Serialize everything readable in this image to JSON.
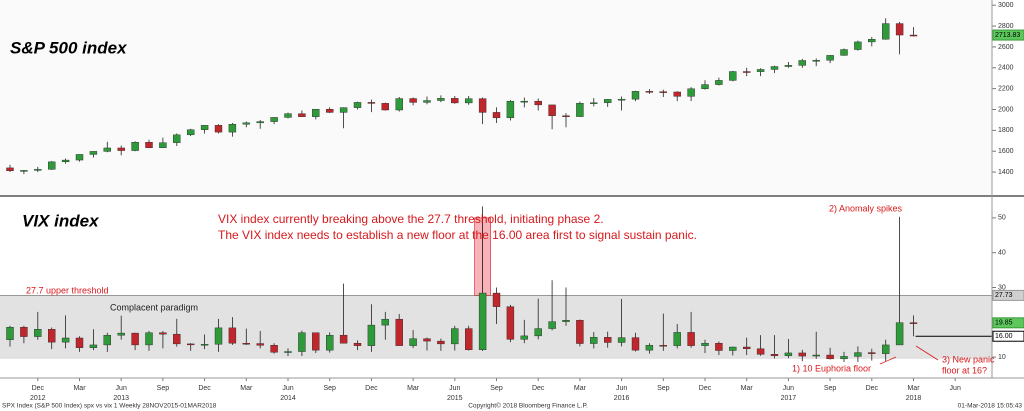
{
  "chart_data": [
    {
      "type": "candlestick",
      "title": "S&P 500 index",
      "color_up": "#2e9a3a",
      "color_down": "#c0272d",
      "x": [
        "2012-10",
        "2012-11",
        "2012-12",
        "2013-01",
        "2013-02",
        "2013-03",
        "2013-04",
        "2013-05",
        "2013-06",
        "2013-07",
        "2013-08",
        "2013-09",
        "2013-10",
        "2013-11",
        "2013-12",
        "2014-01",
        "2014-02",
        "2014-03",
        "2014-04",
        "2014-05",
        "2014-06",
        "2014-07",
        "2014-08",
        "2014-09",
        "2014-10",
        "2014-11",
        "2014-12",
        "2015-01",
        "2015-02",
        "2015-03",
        "2015-04",
        "2015-05",
        "2015-06",
        "2015-07",
        "2015-08",
        "2015-09",
        "2015-10",
        "2015-11",
        "2015-12",
        "2016-01",
        "2016-02",
        "2016-03",
        "2016-04",
        "2016-05",
        "2016-06",
        "2016-07",
        "2016-08",
        "2016-09",
        "2016-10",
        "2016-11",
        "2016-12",
        "2017-01",
        "2017-02",
        "2017-03",
        "2017-04",
        "2017-05",
        "2017-06",
        "2017-07",
        "2017-08",
        "2017-09",
        "2017-10",
        "2017-11",
        "2017-12",
        "2018-01",
        "2018-02",
        "2018-03"
      ],
      "open": [
        1440,
        1412,
        1416,
        1426,
        1498,
        1515,
        1569,
        1598,
        1631,
        1606,
        1686,
        1633,
        1682,
        1757,
        1806,
        1848,
        1783,
        1859,
        1872,
        1884,
        1924,
        1960,
        1931,
        2003,
        1972,
        2018,
        2068,
        2059,
        1995,
        2105,
        2068,
        2086,
        2107,
        2063,
        2104,
        1972,
        1920,
        2079,
        2080,
        2044,
        1940,
        1932,
        2060,
        2065,
        2097,
        2099,
        2174,
        2171,
        2168,
        2126,
        2199,
        2239,
        2279,
        2364,
        2363,
        2384,
        2412,
        2423,
        2470,
        2472,
        2519,
        2575,
        2648,
        2674,
        2824,
        2714
      ],
      "high": [
        1470,
        1420,
        1450,
        1505,
        1530,
        1570,
        1600,
        1690,
        1655,
        1695,
        1710,
        1730,
        1770,
        1815,
        1850,
        1860,
        1870,
        1885,
        1900,
        1925,
        1970,
        1990,
        2005,
        2020,
        2020,
        2075,
        2095,
        2065,
        2120,
        2115,
        2125,
        2135,
        2130,
        2130,
        2115,
        2020,
        2090,
        2115,
        2105,
        2045,
        1965,
        2075,
        2110,
        2100,
        2125,
        2180,
        2195,
        2190,
        2175,
        2215,
        2280,
        2305,
        2370,
        2400,
        2395,
        2420,
        2455,
        2485,
        2490,
        2520,
        2585,
        2660,
        2695,
        2875,
        2840,
        2790
      ],
      "low": [
        1400,
        1380,
        1400,
        1420,
        1480,
        1500,
        1540,
        1590,
        1560,
        1600,
        1630,
        1630,
        1650,
        1745,
        1770,
        1770,
        1740,
        1830,
        1815,
        1860,
        1915,
        1930,
        1905,
        1965,
        1820,
        2000,
        1975,
        1990,
        1980,
        2040,
        2050,
        2070,
        2055,
        2045,
        1860,
        1870,
        1895,
        2020,
        1990,
        1810,
        1830,
        1930,
        2030,
        2025,
        1990,
        2080,
        2150,
        2120,
        2080,
        2080,
        2190,
        2230,
        2270,
        2320,
        2320,
        2350,
        2400,
        2400,
        2415,
        2445,
        2515,
        2565,
        2605,
        2670,
        2530,
        2700
      ],
      "close": [
        1412,
        1416,
        1426,
        1498,
        1515,
        1569,
        1598,
        1631,
        1606,
        1686,
        1633,
        1682,
        1757,
        1806,
        1848,
        1783,
        1859,
        1872,
        1884,
        1924,
        1960,
        1931,
        2003,
        1972,
        2018,
        2068,
        2059,
        1995,
        2105,
        2068,
        2086,
        2107,
        2063,
        2104,
        1972,
        1920,
        2079,
        2080,
        2044,
        1940,
        1932,
        2060,
        2065,
        2097,
        2099,
        2174,
        2171,
        2168,
        2126,
        2199,
        2239,
        2279,
        2364,
        2363,
        2384,
        2412,
        2423,
        2470,
        2472,
        2519,
        2575,
        2648,
        2674,
        2824,
        2714,
        2713.83
      ],
      "last": 2713.83,
      "ylim": [
        1180,
        3050
      ],
      "yticks": [
        1400,
        1600,
        1800,
        2000,
        2200,
        2400,
        2600,
        2800,
        3000
      ]
    },
    {
      "type": "candlestick",
      "title": "VIX index",
      "color_up": "#2e9a3a",
      "color_down": "#c0272d",
      "x": [
        "2012-10",
        "2012-11",
        "2012-12",
        "2013-01",
        "2013-02",
        "2013-03",
        "2013-04",
        "2013-05",
        "2013-06",
        "2013-07",
        "2013-08",
        "2013-09",
        "2013-10",
        "2013-11",
        "2013-12",
        "2014-01",
        "2014-02",
        "2014-03",
        "2014-04",
        "2014-05",
        "2014-06",
        "2014-07",
        "2014-08",
        "2014-09",
        "2014-10",
        "2014-11",
        "2014-12",
        "2015-01",
        "2015-02",
        "2015-03",
        "2015-04",
        "2015-05",
        "2015-06",
        "2015-07",
        "2015-08",
        "2015-09",
        "2015-10",
        "2015-11",
        "2015-12",
        "2016-01",
        "2016-02",
        "2016-03",
        "2016-04",
        "2016-05",
        "2016-06",
        "2016-07",
        "2016-08",
        "2016-09",
        "2016-10",
        "2016-11",
        "2016-12",
        "2017-01",
        "2017-02",
        "2017-03",
        "2017-04",
        "2017-05",
        "2017-06",
        "2017-07",
        "2017-08",
        "2017-09",
        "2017-10",
        "2017-11",
        "2017-12",
        "2018-01",
        "2018-02",
        "2018-03"
      ],
      "open": [
        15,
        18.6,
        15.9,
        18,
        14.3,
        15.5,
        12.7,
        13.5,
        16.3,
        16.9,
        13.5,
        17,
        16.6,
        13.8,
        13.7,
        13.7,
        18.4,
        14,
        13.9,
        13.4,
        11.4,
        11.6,
        17,
        12,
        16.3,
        14,
        13.3,
        19.2,
        20.9,
        13.3,
        15.3,
        14.6,
        13.8,
        18.2,
        12.1,
        28.4,
        24.5,
        15.1,
        16.1,
        18.2,
        20.2,
        20.6,
        13.9,
        15.7,
        14.2,
        15.6,
        12,
        13.4,
        13.3,
        17.1,
        13.3,
        14,
        11.9,
        12.9,
        12.4,
        10.8,
        10.4,
        11.2,
        10.3,
        10.6,
        9.5,
        10.2,
        11.3,
        11,
        13.5,
        19.9
      ],
      "high": [
        19,
        19,
        23,
        18.5,
        22,
        16,
        18,
        17,
        21.9,
        17,
        17.5,
        17.5,
        21,
        14,
        16.5,
        21,
        21.5,
        18.2,
        17.5,
        14,
        12.5,
        17.6,
        17,
        17.1,
        31.1,
        14.8,
        25.2,
        23,
        22.4,
        17.8,
        15.6,
        15.3,
        19,
        19,
        53.3,
        30,
        25,
        20.7,
        26.8,
        32.1,
        30,
        20.8,
        17.2,
        17.3,
        26.7,
        17,
        14,
        22.5,
        19.5,
        23,
        15,
        14.5,
        13,
        15.6,
        16.3,
        16.3,
        15.2,
        12.1,
        17.3,
        12.7,
        11.5,
        13.1,
        12.4,
        15,
        50.3,
        22
      ],
      "low": [
        13,
        14,
        15,
        12.3,
        12.5,
        11.5,
        12,
        11.5,
        15,
        12,
        11.8,
        12.5,
        13,
        11.8,
        12.3,
        11.5,
        13.5,
        13.5,
        12.5,
        11,
        10.3,
        10.3,
        11.2,
        11.3,
        14,
        12,
        11.5,
        15,
        13.3,
        12.6,
        11.9,
        11.8,
        11.9,
        11.9,
        11.8,
        19.5,
        14.3,
        14,
        15.1,
        17.7,
        19,
        13.1,
        12.5,
        12.7,
        13.1,
        11.6,
        11,
        11.8,
        12.5,
        12.7,
        11.2,
        10.6,
        10.5,
        10.6,
        10.4,
        9.6,
        9.7,
        8.8,
        9.5,
        9.3,
        8.6,
        8.6,
        9,
        8.9,
        13.5,
        16
      ],
      "close": [
        18.6,
        15.9,
        18,
        14.3,
        15.5,
        12.7,
        13.5,
        16.3,
        16.9,
        13.5,
        17,
        16.6,
        13.8,
        13.7,
        13.7,
        18.4,
        14,
        13.9,
        13.4,
        11.4,
        11.6,
        17,
        12,
        16.3,
        14,
        13.3,
        19.2,
        20.9,
        13.3,
        15.3,
        14.6,
        13.8,
        18.2,
        12.1,
        28.4,
        24.5,
        15.1,
        16.1,
        18.2,
        20.2,
        20.6,
        13.9,
        15.7,
        14.2,
        15.6,
        12,
        13.4,
        13.3,
        17.1,
        13.3,
        14,
        11.9,
        12.9,
        12.4,
        10.8,
        10.4,
        11.2,
        10.3,
        10.6,
        9.5,
        10.2,
        11.3,
        11,
        13.5,
        19.9,
        19.85
      ],
      "last": 19.85,
      "threshold": 27.73,
      "threshold_label": "27.7 upper threshold",
      "band_low": 9.5,
      "band_label": "Complacent paradigm",
      "floor": {
        "value": 16,
        "label": "16.00"
      },
      "anomaly_high": 50,
      "annotations": [
        "VIX index currently breaking above the 27.7 threshold, initiating phase 2.",
        "The VIX index needs to establish a new floor at the 16.00 area first to signal sustain panic.",
        "2) Anomaly spikes",
        "1) 10 Euphoria floor",
        "3) New panic",
        "floor at 16?"
      ],
      "ylim": [
        4,
        56
      ],
      "yticks": [
        10,
        20,
        30,
        40,
        50
      ],
      "xticks": [
        {
          "value": "2012-12",
          "label": "Dec"
        },
        {
          "value": "2013-03",
          "label": "Mar"
        },
        {
          "value": "2013-06",
          "label": "Jun"
        },
        {
          "value": "2013-09",
          "label": "Sep"
        },
        {
          "value": "2013-12",
          "label": "Dec"
        },
        {
          "value": "2014-03",
          "label": "Mar"
        },
        {
          "value": "2014-06",
          "label": "Jun"
        },
        {
          "value": "2014-09",
          "label": "Sep"
        },
        {
          "value": "2014-12",
          "label": "Dec"
        },
        {
          "value": "2015-03",
          "label": "Mar"
        },
        {
          "value": "2015-06",
          "label": "Jun"
        },
        {
          "value": "2015-09",
          "label": "Sep"
        },
        {
          "value": "2015-12",
          "label": "Dec"
        },
        {
          "value": "2016-03",
          "label": "Mar"
        },
        {
          "value": "2016-06",
          "label": "Jun"
        },
        {
          "value": "2016-09",
          "label": "Sep"
        },
        {
          "value": "2016-12",
          "label": "Dec"
        },
        {
          "value": "2017-03",
          "label": "Mar"
        },
        {
          "value": "2017-06",
          "label": "Jun"
        },
        {
          "value": "2017-09",
          "label": "Sep"
        },
        {
          "value": "2017-12",
          "label": "Dec"
        },
        {
          "value": "2018-03",
          "label": "Mar"
        },
        {
          "value": "2018-06",
          "label": "Jun"
        }
      ],
      "xyears": [
        {
          "value": "2012-12",
          "label": "2012"
        },
        {
          "value": "2013-06",
          "label": "2013"
        },
        {
          "value": "2014-06",
          "label": "2014"
        },
        {
          "value": "2015-06",
          "label": "2015"
        },
        {
          "value": "2016-06",
          "label": "2016"
        },
        {
          "value": "2017-06",
          "label": "2017"
        },
        {
          "value": "2018-03",
          "label": "2018"
        }
      ]
    }
  ],
  "footer": {
    "left": "SPX Index (S&P 500 Index) spx vs vix 1  Weekly 28NOV2015-01MAR2018",
    "center": "Copyright© 2018 Bloomberg Finance L.P.",
    "right": "01-Mar-2018 15:05:43"
  }
}
